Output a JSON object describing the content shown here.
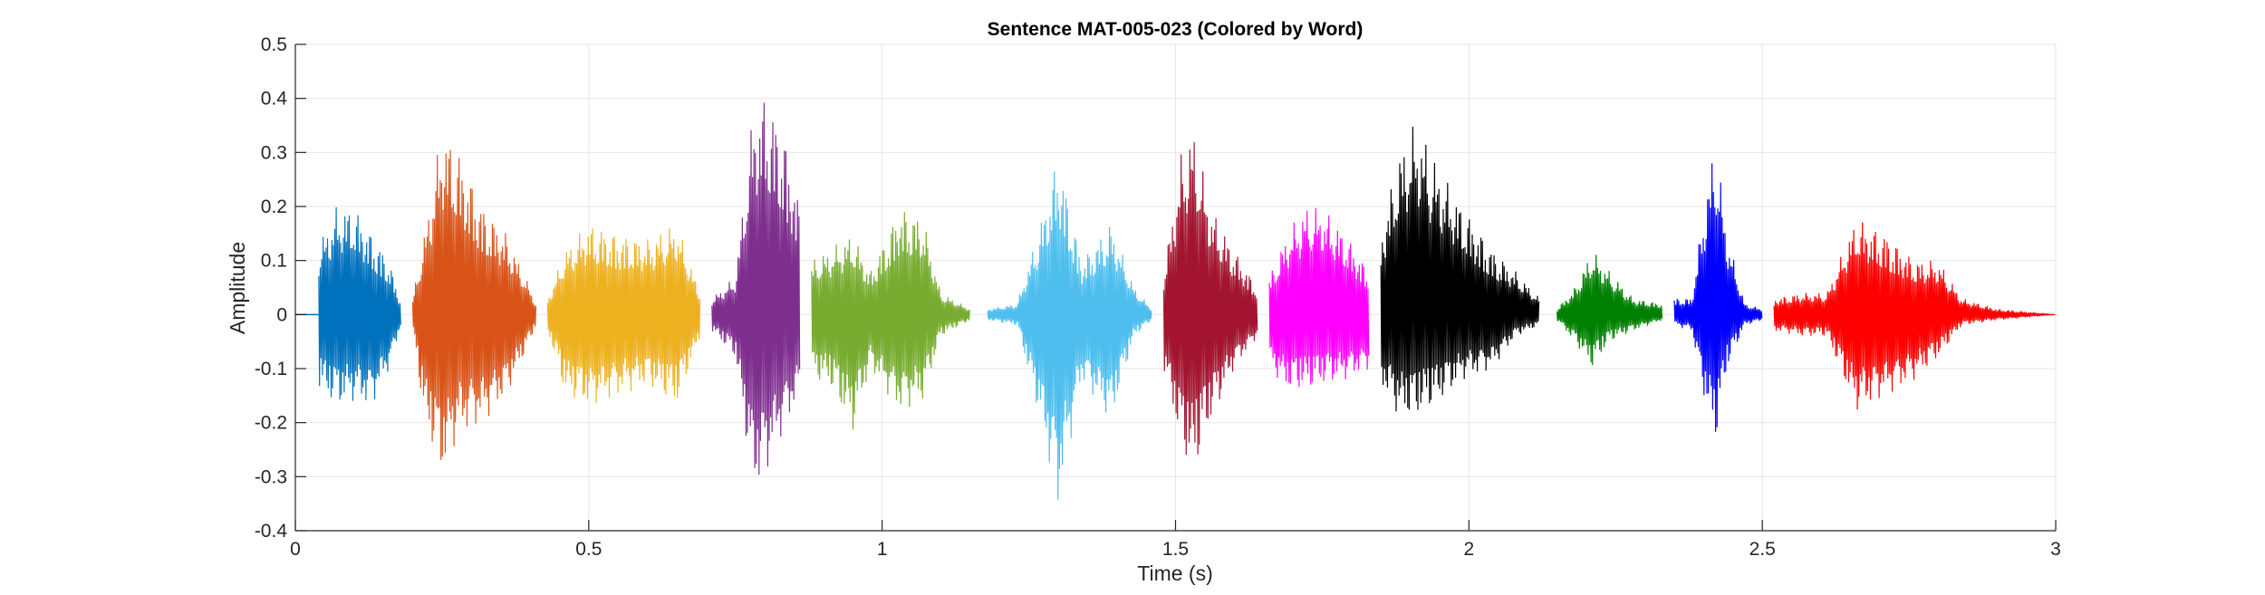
{
  "chart_data": {
    "type": "line",
    "title": "Sentence MAT-005-023 (Colored by Word)",
    "xlabel": "Time (s)",
    "ylabel": "Amplitude",
    "xlim": [
      0,
      3
    ],
    "ylim": [
      -0.4,
      0.5
    ],
    "xticks": [
      0,
      0.5,
      1,
      1.5,
      2,
      2.5,
      3
    ],
    "xtick_labels": [
      "0",
      "0.5",
      "1",
      "1.5",
      "2",
      "2.5",
      "3"
    ],
    "yticks": [
      -0.4,
      -0.3,
      -0.2,
      -0.1,
      0,
      0.1,
      0.2,
      0.3,
      0.4,
      0.5
    ],
    "ytick_labels": [
      "-0.4",
      "-0.3",
      "-0.2",
      "-0.1",
      "0",
      "0.1",
      "0.2",
      "0.3",
      "0.4",
      "0.5"
    ],
    "grid": true,
    "series": [
      {
        "color": "#0072BD",
        "x": [
          0.04,
          0.07,
          0.1,
          0.13,
          0.16,
          0.18
        ],
        "peak_pos": [
          0.13,
          0.2,
          0.2,
          0.15,
          0.1,
          0.02
        ],
        "peak_neg": [
          -0.14,
          -0.17,
          -0.16,
          -0.17,
          -0.1,
          -0.02
        ]
      },
      {
        "color": "#D95319",
        "x": [
          0.2,
          0.22,
          0.25,
          0.28,
          0.32,
          0.36,
          0.4,
          0.41
        ],
        "peak_pos": [
          0.03,
          0.15,
          0.35,
          0.3,
          0.2,
          0.15,
          0.05,
          0.02
        ],
        "peak_neg": [
          -0.03,
          -0.2,
          -0.3,
          -0.22,
          -0.2,
          -0.15,
          -0.05,
          -0.02
        ]
      },
      {
        "color": "#EDB120",
        "x": [
          0.43,
          0.46,
          0.5,
          0.55,
          0.6,
          0.65,
          0.69
        ],
        "peak_pos": [
          0.03,
          0.12,
          0.17,
          0.15,
          0.14,
          0.17,
          0.04
        ],
        "peak_neg": [
          -0.03,
          -0.15,
          -0.17,
          -0.15,
          -0.13,
          -0.17,
          -0.04
        ]
      },
      {
        "color": "#7E2F8E",
        "x": [
          0.71,
          0.75,
          0.78,
          0.8,
          0.83,
          0.86
        ],
        "peak_pos": [
          0.03,
          0.07,
          0.38,
          0.41,
          0.35,
          0.2
        ],
        "peak_neg": [
          -0.03,
          -0.08,
          -0.33,
          -0.3,
          -0.22,
          -0.15
        ]
      },
      {
        "color": "#77AC30",
        "x": [
          0.88,
          0.91,
          0.95,
          0.98,
          1.03,
          1.07,
          1.1,
          1.15
        ],
        "peak_pos": [
          0.1,
          0.12,
          0.15,
          0.08,
          0.2,
          0.18,
          0.04,
          0.01
        ],
        "peak_neg": [
          -0.12,
          -0.13,
          -0.22,
          -0.1,
          -0.18,
          -0.16,
          -0.04,
          -0.01
        ]
      },
      {
        "color": "#4DBEEE",
        "x": [
          1.18,
          1.23,
          1.27,
          1.3,
          1.34,
          1.39,
          1.43,
          1.46
        ],
        "peak_pos": [
          0.01,
          0.02,
          0.17,
          0.3,
          0.1,
          0.17,
          0.05,
          0.01
        ],
        "peak_neg": [
          -0.01,
          -0.02,
          -0.2,
          -0.36,
          -0.12,
          -0.2,
          -0.04,
          -0.01
        ]
      },
      {
        "color": "#A2142F",
        "x": [
          1.48,
          1.51,
          1.53,
          1.56,
          1.6,
          1.64
        ],
        "peak_pos": [
          0.08,
          0.3,
          0.35,
          0.2,
          0.12,
          0.05
        ],
        "peak_neg": [
          -0.1,
          -0.25,
          -0.3,
          -0.2,
          -0.1,
          -0.04
        ]
      },
      {
        "color": "#FF00FF",
        "x": [
          1.66,
          1.69,
          1.72,
          1.75,
          1.79,
          1.83
        ],
        "peak_pos": [
          0.07,
          0.15,
          0.2,
          0.2,
          0.15,
          0.08
        ],
        "peak_neg": [
          -0.1,
          -0.14,
          -0.14,
          -0.13,
          -0.12,
          -0.1
        ]
      },
      {
        "color": "#000000",
        "x": [
          1.85,
          1.88,
          1.91,
          1.95,
          1.99,
          2.04,
          2.08,
          2.12
        ],
        "peak_pos": [
          0.15,
          0.3,
          0.36,
          0.27,
          0.2,
          0.12,
          0.08,
          0.03
        ],
        "peak_neg": [
          -0.13,
          -0.19,
          -0.19,
          -0.16,
          -0.12,
          -0.1,
          -0.04,
          -0.02
        ]
      },
      {
        "color": "#008000",
        "x": [
          2.15,
          2.18,
          2.21,
          2.24,
          2.28,
          2.33
        ],
        "peak_pos": [
          0.01,
          0.05,
          0.12,
          0.08,
          0.03,
          0.02
        ],
        "peak_neg": [
          -0.01,
          -0.05,
          -0.1,
          -0.05,
          -0.03,
          -0.01
        ]
      },
      {
        "color": "#0000FF",
        "x": [
          2.35,
          2.38,
          2.4,
          2.42,
          2.44,
          2.47,
          2.5
        ],
        "peak_pos": [
          0.03,
          0.03,
          0.2,
          0.33,
          0.15,
          0.02,
          0.01
        ],
        "peak_neg": [
          -0.02,
          -0.03,
          -0.15,
          -0.24,
          -0.1,
          -0.02,
          -0.01
        ]
      },
      {
        "color": "#FF0000",
        "x": [
          2.52,
          2.57,
          2.61,
          2.66,
          2.71,
          2.76,
          2.8,
          2.84,
          2.9,
          3.0
        ],
        "peak_pos": [
          0.03,
          0.04,
          0.04,
          0.18,
          0.15,
          0.1,
          0.1,
          0.03,
          0.01,
          0.0
        ],
        "peak_neg": [
          -0.03,
          -0.04,
          -0.04,
          -0.18,
          -0.15,
          -0.12,
          -0.08,
          -0.02,
          -0.01,
          0.0
        ]
      }
    ]
  }
}
